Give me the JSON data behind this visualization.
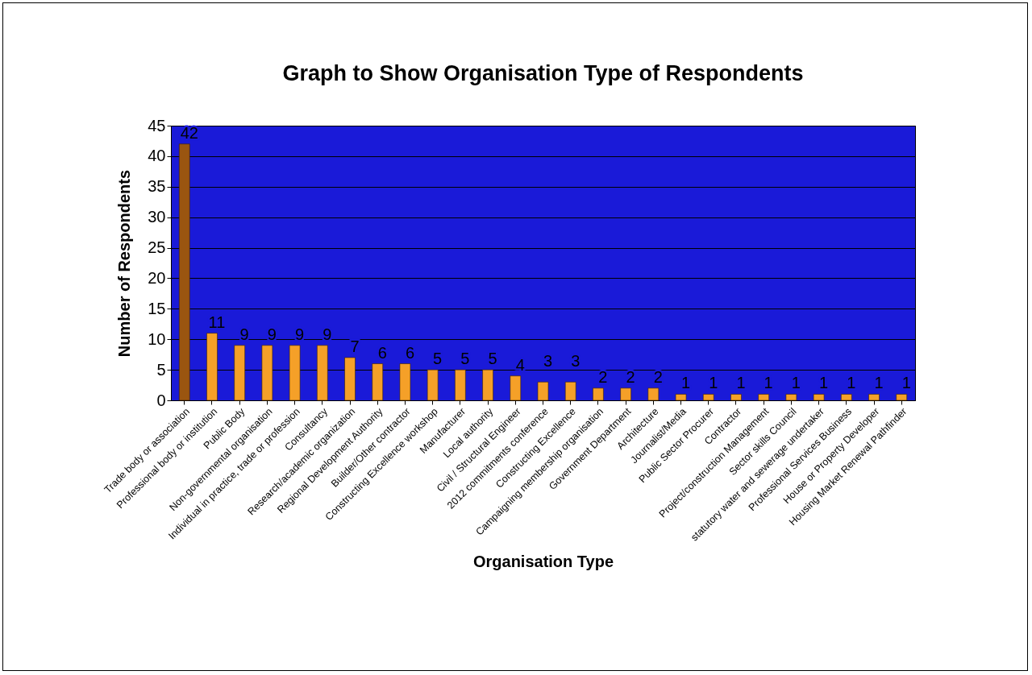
{
  "chart_data": {
    "type": "bar",
    "title": "Graph to Show Organisation Type of Respondents",
    "xlabel": "Organisation Type",
    "ylabel": "Number of Respondents",
    "categories": [
      "Trade body or association",
      "Professional body or institution",
      "Public Body",
      "Non-governmental organisation",
      "Individual in practice, trade or profession",
      "Consultancy",
      "Research/academic organization",
      "Regional Development Authority",
      "Builder/Other contractor",
      "Constructing Excellence workshop",
      "Manufacturer",
      "Local authority",
      "Civil / Structural Engineer",
      "2012 commitments conference",
      "Constructing Excellence",
      "Campaigning membership organisation",
      "Government Department",
      "Architecture",
      "Journalist/Media",
      "Public Sector Procurer",
      "Contractor",
      "Project/construction Management",
      "Sector skills Council",
      "statutory water and sewerage undertaker",
      "Professional Services Business",
      "House or Property Developer",
      "Housing Market Renewal Pathfinder"
    ],
    "values": [
      42,
      11,
      9,
      9,
      9,
      9,
      7,
      6,
      6,
      5,
      5,
      5,
      4,
      3,
      3,
      2,
      2,
      2,
      1,
      1,
      1,
      1,
      1,
      1,
      1,
      1,
      1
    ],
    "colors": [
      "#9a5510",
      "#f5a028",
      "#f5a028",
      "#f5a028",
      "#f5a028",
      "#f5a028",
      "#f5a028",
      "#f5a028",
      "#f5a028",
      "#f5a028",
      "#f5a028",
      "#f5a028",
      "#f5a028",
      "#f5a028",
      "#f5a028",
      "#f5a028",
      "#f5a028",
      "#f5a028",
      "#f5a028",
      "#f5a028",
      "#f5a028",
      "#f5a028",
      "#f5a028",
      "#f5a028",
      "#f5a028",
      "#f5a028",
      "#f5a028"
    ],
    "ylim": [
      0,
      45
    ],
    "yticks": [
      0,
      5,
      10,
      15,
      20,
      25,
      30,
      35,
      40,
      45
    ],
    "grid": true,
    "data_labels": true
  }
}
